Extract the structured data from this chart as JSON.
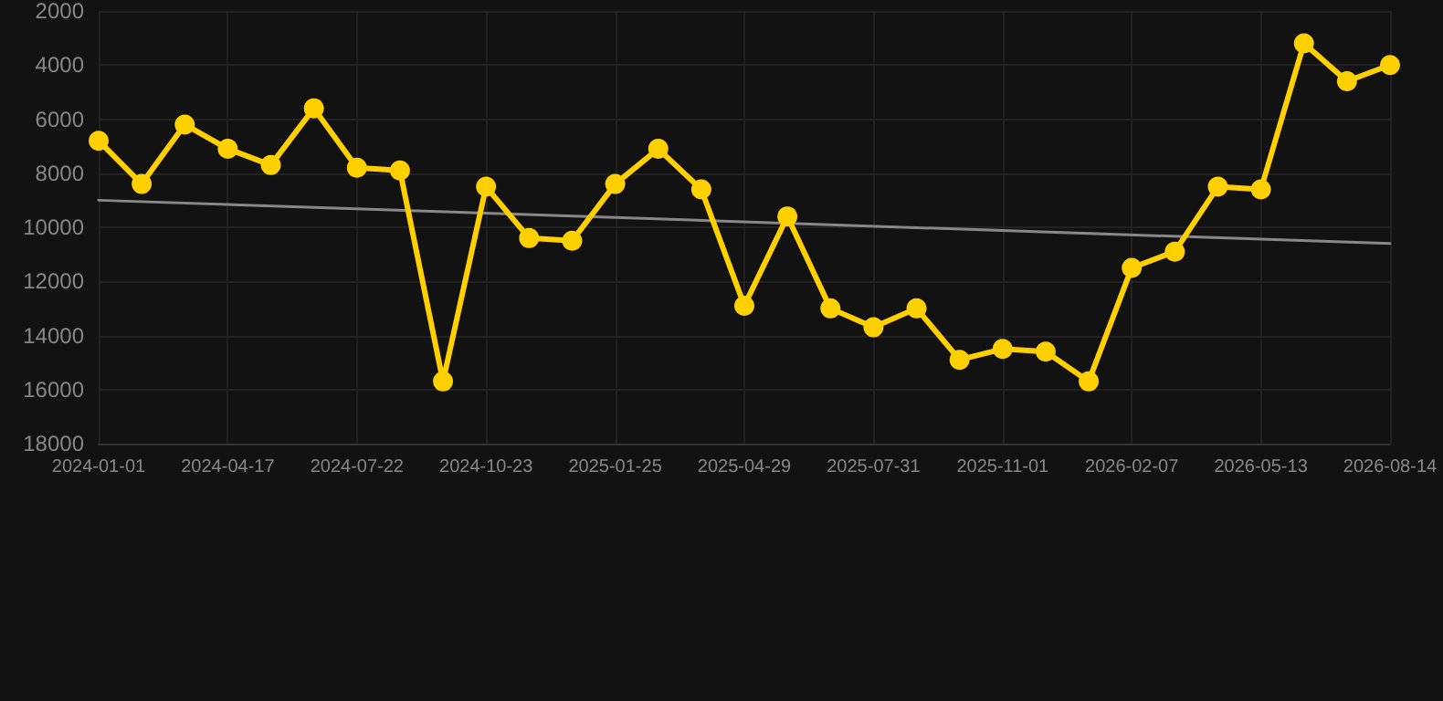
{
  "chart_data": {
    "type": "line",
    "categories": [
      "2024-01-01",
      null,
      null,
      "2024-04-17",
      null,
      null,
      "2024-07-22",
      null,
      null,
      "2024-10-23",
      null,
      null,
      "2025-01-25",
      null,
      null,
      "2025-04-29",
      null,
      null,
      "2025-07-31",
      null,
      null,
      "2025-11-01",
      null,
      null,
      "2026-02-07",
      null,
      null,
      "2026-05-13",
      null,
      null,
      "2026-08-14"
    ],
    "series": [
      {
        "color": "#ffd000",
        "marker": "circle",
        "values": [
          6800,
          8400,
          6200,
          7100,
          7700,
          5600,
          7800,
          7900,
          15700,
          8500,
          10400,
          10500,
          8400,
          7100,
          8600,
          12900,
          9600,
          13000,
          13700,
          13000,
          14900,
          14500,
          14600,
          15700,
          11500,
          10900,
          8500,
          8600,
          3200,
          4600,
          4000
        ]
      },
      {
        "type": "line",
        "color": "#888888",
        "marker": "none",
        "values": [
          9000,
          null,
          null,
          null,
          null,
          null,
          null,
          null,
          null,
          null,
          null,
          null,
          null,
          null,
          null,
          null,
          null,
          null,
          null,
          null,
          null,
          null,
          null,
          null,
          null,
          null,
          null,
          null,
          null,
          null,
          10600
        ]
      }
    ],
    "ylim": [
      18000,
      2000
    ],
    "yticks": [
      2000,
      4000,
      6000,
      8000,
      10000,
      12000,
      14000,
      16000,
      18000
    ],
    "grid": true
  }
}
